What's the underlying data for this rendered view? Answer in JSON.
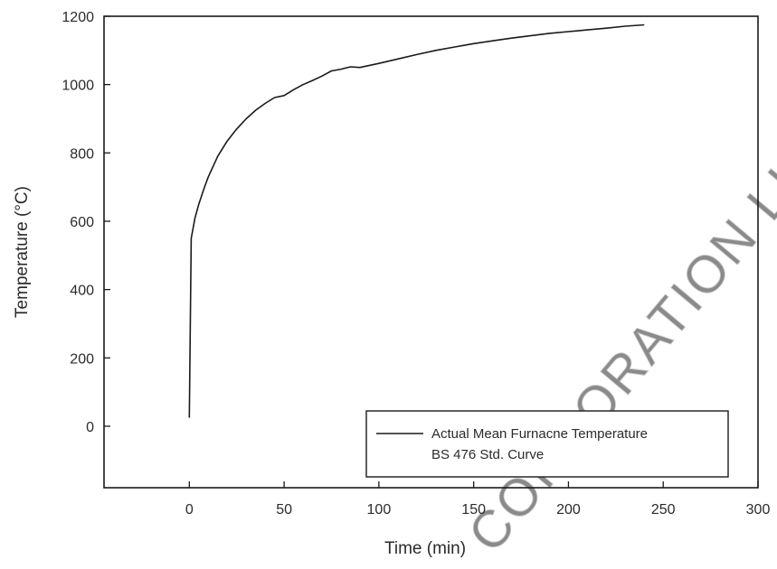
{
  "chart_data": {
    "type": "line",
    "title": "",
    "xlabel": "Time (min)",
    "ylabel": "Temperature (°C)",
    "xlim": [
      -45,
      300
    ],
    "ylim": [
      -180,
      1200
    ],
    "x_ticks": [
      0,
      50,
      100,
      150,
      200,
      250,
      300
    ],
    "y_ticks": [
      0,
      200,
      400,
      600,
      800,
      1000,
      1200
    ],
    "grid": false,
    "legend_position": "bottom-right",
    "legend": [
      "Actual Mean Furnacne Temperature",
      "BS 476 Std. Curve"
    ],
    "series": [
      {
        "name": "Actual Mean Furnacne Temperature",
        "color": "#1a1a1a",
        "x": [
          0,
          0.5,
          1,
          2,
          3,
          5,
          8,
          10,
          15,
          20,
          25,
          30,
          35,
          40,
          45,
          50,
          55,
          60,
          65,
          70,
          75,
          80,
          85,
          90,
          100,
          110,
          120,
          130,
          140,
          150,
          160,
          170,
          180,
          190,
          200,
          210,
          220,
          230,
          240
        ],
        "y": [
          25,
          300,
          550,
          580,
          610,
          650,
          700,
          730,
          790,
          835,
          870,
          900,
          925,
          945,
          962,
          968,
          985,
          1000,
          1012,
          1025,
          1040,
          1045,
          1052,
          1050,
          1062,
          1075,
          1088,
          1100,
          1110,
          1120,
          1128,
          1136,
          1143,
          1150,
          1155,
          1160,
          1165,
          1171,
          1175
        ]
      },
      {
        "name": "BS 476 Std. Curve",
        "color": "#1a1a1a",
        "x": [],
        "y": []
      }
    ]
  },
  "watermark": "CORPORATION LIMI"
}
